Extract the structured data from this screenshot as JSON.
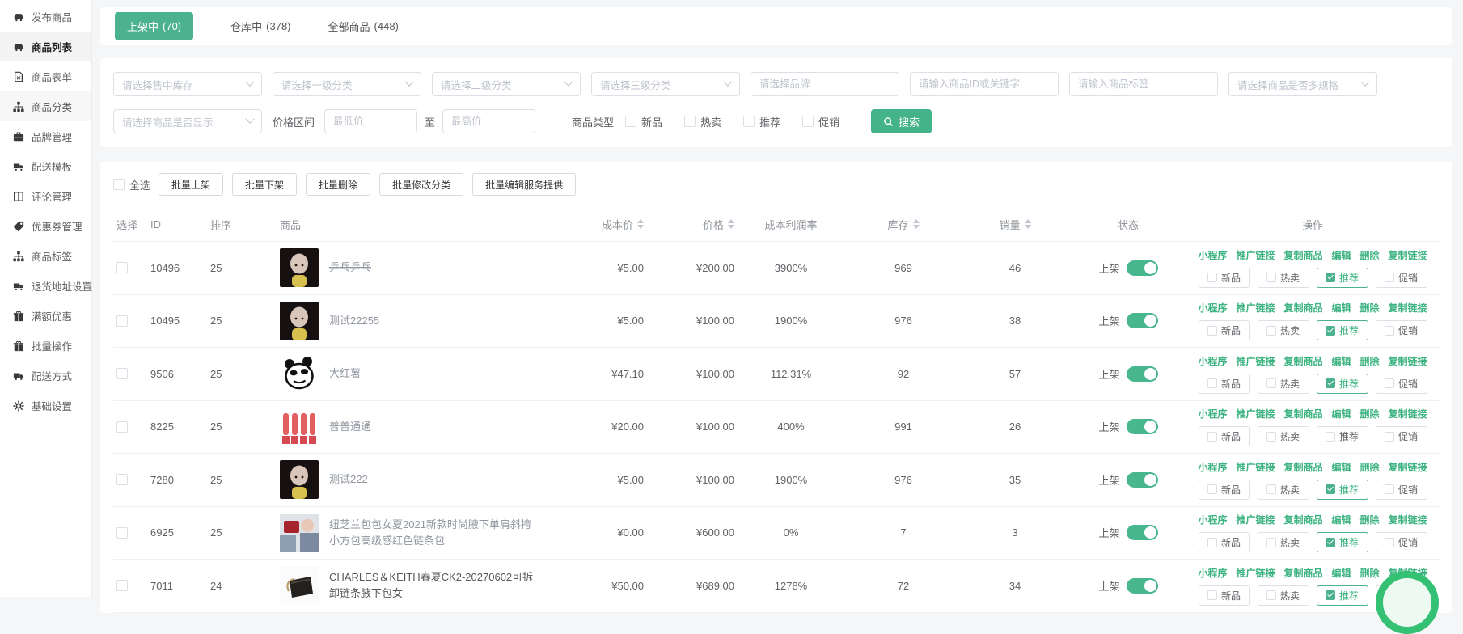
{
  "accent_color": "#44b38a",
  "toggle_color": "#48b78d",
  "sidebar": {
    "items": [
      {
        "slug": "publish-product",
        "label": "发布商品",
        "icon": "car",
        "active": false,
        "hovered": false
      },
      {
        "slug": "product-list",
        "label": "商品列表",
        "icon": "car",
        "active": true,
        "hovered": false
      },
      {
        "slug": "product-form",
        "label": "商品表单",
        "icon": "file",
        "active": false,
        "hovered": false
      },
      {
        "slug": "product-category",
        "label": "商品分类",
        "icon": "sitemap",
        "active": false,
        "hovered": true
      },
      {
        "slug": "brand-management",
        "label": "品牌管理",
        "icon": "briefcase",
        "active": false,
        "hovered": false
      },
      {
        "slug": "shipping-template",
        "label": "配送模板",
        "icon": "truck",
        "active": false,
        "hovered": false
      },
      {
        "slug": "review-management",
        "label": "评论管理",
        "icon": "columns",
        "active": false,
        "hovered": false
      },
      {
        "slug": "coupon-management",
        "label": "优惠券管理",
        "icon": "tag",
        "active": false,
        "hovered": false
      },
      {
        "slug": "product-tags",
        "label": "商品标签",
        "icon": "sitemap",
        "active": false,
        "hovered": false
      },
      {
        "slug": "return-address",
        "label": "退货地址设置",
        "icon": "truck",
        "active": false,
        "hovered": false
      },
      {
        "slug": "full-discount",
        "label": "满额优惠",
        "icon": "gift",
        "active": false,
        "hovered": false
      },
      {
        "slug": "batch-operations",
        "label": "批量操作",
        "icon": "gift",
        "active": false,
        "hovered": false
      },
      {
        "slug": "shipping-method",
        "label": "配送方式",
        "icon": "truck",
        "active": false,
        "hovered": false
      },
      {
        "slug": "basic-settings",
        "label": "基础设置",
        "icon": "gear",
        "active": false,
        "hovered": false
      }
    ]
  },
  "tabs": [
    {
      "slug": "on-sale",
      "label": "上架中",
      "count": "(70)",
      "active": true
    },
    {
      "slug": "in-warehouse",
      "label": "仓库中",
      "count": "(378)",
      "active": false
    },
    {
      "slug": "all-products",
      "label": "全部商品",
      "count": "(448)",
      "active": false
    }
  ],
  "filters": {
    "row1": [
      {
        "slug": "stock-select",
        "kind": "select",
        "placeholder": "请选择售中库存"
      },
      {
        "slug": "category1-select",
        "kind": "select",
        "placeholder": "请选择一级分类"
      },
      {
        "slug": "category2-select",
        "kind": "select",
        "placeholder": "请选择二级分类"
      },
      {
        "slug": "category3-select",
        "kind": "select",
        "placeholder": "请选择三级分类"
      },
      {
        "slug": "brand-input",
        "kind": "input",
        "placeholder": "请选择品牌"
      },
      {
        "slug": "keyword-input",
        "kind": "input",
        "placeholder": "请输入商品ID或关键字"
      },
      {
        "slug": "tag-input",
        "kind": "input",
        "placeholder": "请输入商品标签"
      },
      {
        "slug": "multi-spec-select",
        "kind": "select",
        "placeholder": "请选择商品是否多规格"
      }
    ],
    "row2": {
      "display_select_placeholder": "请选择商品是否显示",
      "price_label": "价格区间",
      "min_placeholder": "最低价",
      "to_label": "至",
      "max_placeholder": "最高价",
      "type_label": "商品类型",
      "types": [
        {
          "slug": "new",
          "label": "新品",
          "checked": false
        },
        {
          "slug": "hot",
          "label": "热卖",
          "checked": false
        },
        {
          "slug": "recommend",
          "label": "推荐",
          "checked": false
        },
        {
          "slug": "promo",
          "label": "促销",
          "checked": false
        }
      ],
      "search_label": "搜索"
    }
  },
  "batch": {
    "select_all_label": "全选",
    "buttons": [
      {
        "slug": "batch-on-shelf",
        "label": "批量上架"
      },
      {
        "slug": "batch-off-shelf",
        "label": "批量下架"
      },
      {
        "slug": "batch-delete",
        "label": "批量删除"
      },
      {
        "slug": "batch-edit-category",
        "label": "批量修改分类"
      },
      {
        "slug": "batch-edit-service",
        "label": "批量编辑服务提供"
      }
    ]
  },
  "table": {
    "headers": [
      {
        "label": "选择",
        "sort": false
      },
      {
        "label": "ID",
        "sort": false
      },
      {
        "label": "排序",
        "sort": false
      },
      {
        "label": "商品",
        "sort": false
      },
      {
        "label": "成本价",
        "sort": true
      },
      {
        "label": "价格",
        "sort": true
      },
      {
        "label": "成本利润率",
        "sort": false
      },
      {
        "label": "库存",
        "sort": true
      },
      {
        "label": "销量",
        "sort": true
      },
      {
        "label": "状态",
        "sort": false
      },
      {
        "label": "操作",
        "sort": false
      }
    ],
    "action_links": [
      {
        "slug": "mini-program",
        "label": "小程序"
      },
      {
        "slug": "promo-link",
        "label": "推广链接"
      },
      {
        "slug": "copy-product",
        "label": "复制商品"
      },
      {
        "slug": "edit",
        "label": "编辑"
      },
      {
        "slug": "delete",
        "label": "删除"
      },
      {
        "slug": "copy-url",
        "label": "复制链接"
      }
    ],
    "rows": [
      {
        "id": "10496",
        "sort": "25",
        "name": "乒乓乒乓",
        "strike": true,
        "dark": false,
        "thumb": "doll",
        "cost": "¥5.00",
        "price": "¥200.00",
        "profit": "3900%",
        "stock": "969",
        "sales": "46",
        "status": "上架",
        "toggle_on": true,
        "chips": [
          {
            "slug": "new",
            "label": "新品",
            "checked": false
          },
          {
            "slug": "hot",
            "label": "热卖",
            "checked": false
          },
          {
            "slug": "recommend",
            "label": "推荐",
            "checked": true
          },
          {
            "slug": "promo",
            "label": "促销",
            "checked": false
          }
        ]
      },
      {
        "id": "10495",
        "sort": "25",
        "name": "测试22255",
        "strike": false,
        "dark": false,
        "thumb": "doll",
        "cost": "¥5.00",
        "price": "¥100.00",
        "profit": "1900%",
        "stock": "976",
        "sales": "38",
        "status": "上架",
        "toggle_on": true,
        "chips": [
          {
            "slug": "new",
            "label": "新品",
            "checked": false
          },
          {
            "slug": "hot",
            "label": "热卖",
            "checked": false
          },
          {
            "slug": "recommend",
            "label": "推荐",
            "checked": true
          },
          {
            "slug": "promo",
            "label": "促销",
            "checked": false
          }
        ]
      },
      {
        "id": "9506",
        "sort": "25",
        "name": "大红薯",
        "strike": false,
        "dark": false,
        "thumb": "panda",
        "cost": "¥47.10",
        "price": "¥100.00",
        "profit": "112.31%",
        "stock": "92",
        "sales": "57",
        "status": "上架",
        "toggle_on": true,
        "chips": [
          {
            "slug": "new",
            "label": "新品",
            "checked": false
          },
          {
            "slug": "hot",
            "label": "热卖",
            "checked": false
          },
          {
            "slug": "recommend",
            "label": "推荐",
            "checked": true
          },
          {
            "slug": "promo",
            "label": "促销",
            "checked": false
          }
        ]
      },
      {
        "id": "8225",
        "sort": "25",
        "name": "普普通通",
        "strike": false,
        "dark": false,
        "thumb": "lipstick",
        "cost": "¥20.00",
        "price": "¥100.00",
        "profit": "400%",
        "stock": "991",
        "sales": "26",
        "status": "上架",
        "toggle_on": true,
        "chips": [
          {
            "slug": "new",
            "label": "新品",
            "checked": false
          },
          {
            "slug": "hot",
            "label": "热卖",
            "checked": false
          },
          {
            "slug": "recommend",
            "label": "推荐",
            "checked": false
          },
          {
            "slug": "promo",
            "label": "促销",
            "checked": false
          }
        ]
      },
      {
        "id": "7280",
        "sort": "25",
        "name": "测试222",
        "strike": false,
        "dark": false,
        "thumb": "doll",
        "cost": "¥5.00",
        "price": "¥100.00",
        "profit": "1900%",
        "stock": "976",
        "sales": "35",
        "status": "上架",
        "toggle_on": true,
        "chips": [
          {
            "slug": "new",
            "label": "新品",
            "checked": false
          },
          {
            "slug": "hot",
            "label": "热卖",
            "checked": false
          },
          {
            "slug": "recommend",
            "label": "推荐",
            "checked": true
          },
          {
            "slug": "promo",
            "label": "促销",
            "checked": false
          }
        ]
      },
      {
        "id": "6925",
        "sort": "25",
        "name": "纽芝兰包包女夏2021新款时尚腋下单肩斜挎小方包高级感红色链条包",
        "strike": false,
        "dark": false,
        "thumb": "redbag",
        "cost": "¥0.00",
        "price": "¥600.00",
        "profit": "0%",
        "stock": "7",
        "sales": "3",
        "status": "上架",
        "toggle_on": true,
        "chips": [
          {
            "slug": "new",
            "label": "新品",
            "checked": false
          },
          {
            "slug": "hot",
            "label": "热卖",
            "checked": false
          },
          {
            "slug": "recommend",
            "label": "推荐",
            "checked": true
          },
          {
            "slug": "promo",
            "label": "促销",
            "checked": false
          }
        ]
      },
      {
        "id": "7011",
        "sort": "24",
        "name": "CHARLES＆KEITH春夏CK2-20270602可拆卸链条腋下包女",
        "strike": false,
        "dark": true,
        "thumb": "blackbag",
        "cost": "¥50.00",
        "price": "¥689.00",
        "profit": "1278%",
        "stock": "72",
        "sales": "34",
        "status": "上架",
        "toggle_on": true,
        "chips": [
          {
            "slug": "new",
            "label": "新品",
            "checked": false
          },
          {
            "slug": "hot",
            "label": "热卖",
            "checked": false
          },
          {
            "slug": "recommend",
            "label": "推荐",
            "checked": true
          },
          {
            "slug": "promo",
            "label": "促销",
            "checked": false
          }
        ]
      }
    ]
  }
}
